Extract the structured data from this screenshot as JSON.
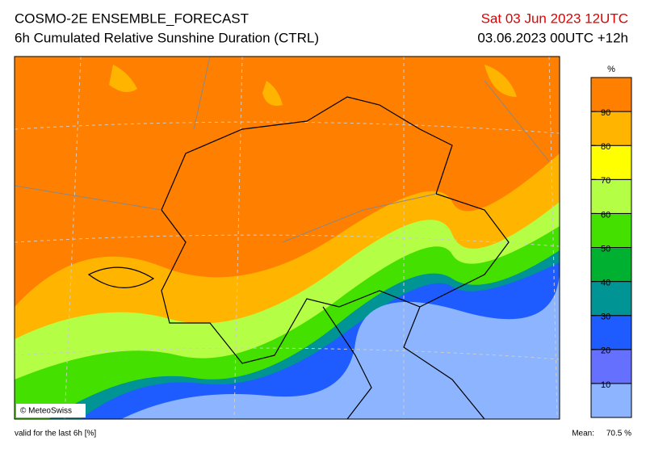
{
  "header": {
    "title": "COSMO-2E ENSEMBLE_FORECAST",
    "subtitle": "6h Cumulated Relative Sunshine Duration (CTRL)",
    "date": "Sat 03 Jun 2023 12UTC",
    "run": "03.06.2023 00UTC +12h",
    "date_color": "#e00000"
  },
  "map": {
    "credit": "© MeteoSwiss"
  },
  "colorbar": {
    "unit": "%",
    "range": [
      0,
      100
    ],
    "ticks": [
      10,
      20,
      30,
      40,
      50,
      60,
      70,
      80,
      90
    ],
    "colors": [
      "#8cb4ff",
      "#6670ff",
      "#1f5cff",
      "#009494",
      "#00b030",
      "#44e000",
      "#b4ff46",
      "#ffff00",
      "#ffb400",
      "#ff7f00"
    ]
  },
  "footer": {
    "validity": "valid for the last 6h [%]",
    "mean_label": "Mean:",
    "mean": "70.5 %"
  }
}
